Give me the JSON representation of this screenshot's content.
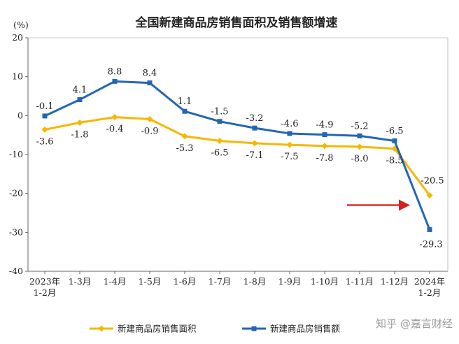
{
  "chart_data": {
    "type": "line",
    "title": "全国新建商品房销售面积及销售额增速",
    "ylabel": "(%)",
    "ylim": [
      -40,
      20
    ],
    "yticks": [
      20,
      10,
      0,
      -10,
      -20,
      -30,
      -40
    ],
    "categories": [
      [
        "2023年",
        "1-2月"
      ],
      [
        "1-3月"
      ],
      [
        "1-4月"
      ],
      [
        "1-5月"
      ],
      [
        "1-6月"
      ],
      [
        "1-7月"
      ],
      [
        "1-8月"
      ],
      [
        "1-9月"
      ],
      [
        "1-10月"
      ],
      [
        "1-11月"
      ],
      [
        "1-12月"
      ],
      [
        "2024年",
        "1-2月"
      ]
    ],
    "series": [
      {
        "name": "新建商品房销售面积",
        "color": "#f5b800",
        "values": [
          -3.6,
          -1.8,
          -0.4,
          -0.9,
          -5.3,
          -6.5,
          -7.1,
          -7.5,
          -7.8,
          -8.0,
          -8.5,
          -20.5
        ],
        "labels": [
          "-3.6",
          "-1.8",
          "-0.4",
          "-0.9",
          "-5.3",
          "-6.5",
          "-7.1",
          "-7.5",
          "-7.8",
          "-8.0",
          "-8.5",
          "-20.5"
        ]
      },
      {
        "name": "新建商品房销售额",
        "color": "#2466b3",
        "values": [
          -0.1,
          4.1,
          8.8,
          8.4,
          1.1,
          -1.5,
          -3.2,
          -4.6,
          -4.9,
          -5.2,
          -6.5,
          -29.3
        ],
        "labels": [
          "-0.1",
          "4.1",
          "8.8",
          "8.4",
          "1.1",
          "-1.5",
          "-3.2",
          "-4.6",
          "-4.9",
          "-5.2",
          "-6.5",
          "-29.3"
        ]
      }
    ],
    "grid": false,
    "legend_position": "bottom",
    "annotation": {
      "type": "arrow",
      "color": "#d42020",
      "points_to": "2024年 1-2月"
    }
  },
  "watermark": "知乎 @嘉言财经"
}
